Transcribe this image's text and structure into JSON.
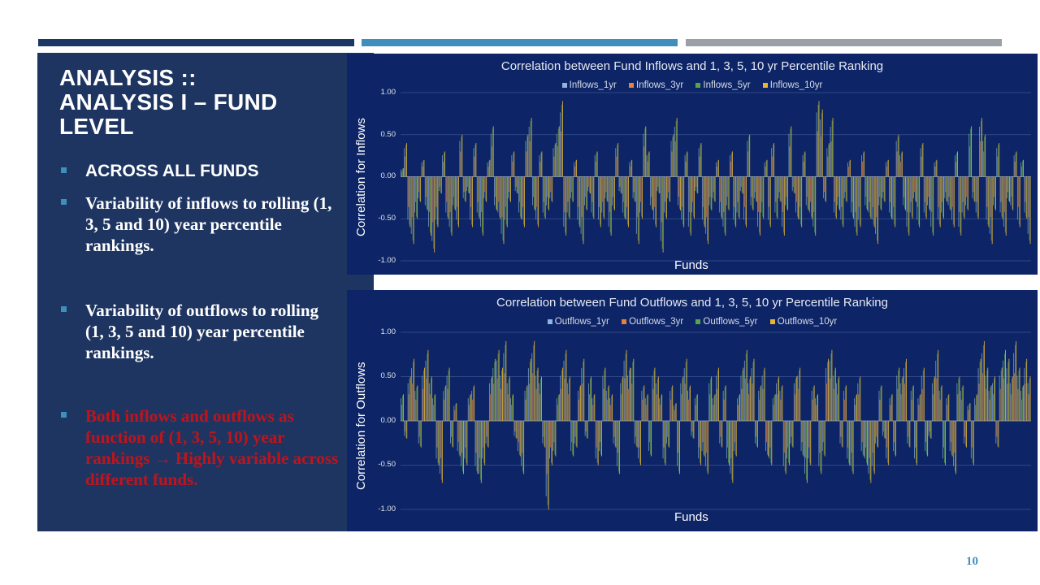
{
  "title": {
    "line1": "ANALYSIS ::",
    "line2": "ANALYSIS I – FUND",
    "line3": "LEVEL"
  },
  "bullets": [
    {
      "text": "ACROSS ALL FUNDS"
    },
    {
      "text": "Variability of inflows to rolling (1, 3, 5 and 10) year percentile rankings."
    },
    {
      "text": "Variability of outflows to rolling (1, 3, 5 and 10) year percentile rankings."
    },
    {
      "text": "Both inflows and outflows as function of (1, 3, 5, 10) year rankings → Highly variable across different funds."
    }
  ],
  "page_number": "10",
  "colors": {
    "panel": "#1e3561",
    "chart_bg": "#0d2566",
    "accent": "#3f8fbd",
    "highlight_text": "#c0141b",
    "series_1yr": "#8fb4e3",
    "series_3yr": "#e8823a",
    "series_5yr": "#5aa447",
    "series_10yr": "#e8b533"
  },
  "chart_data": [
    {
      "type": "bar",
      "title": "Correlation between Fund Inflows and 1, 3, 5, 10 yr Percentile Ranking",
      "xlabel": "Funds",
      "ylabel": "Correlation for Inflows",
      "ylim": [
        -1.0,
        1.0
      ],
      "yticks": [
        "1.00",
        "0.50",
        "0.00",
        "-0.50",
        "-1.00"
      ],
      "grid": true,
      "legend_position": "top",
      "series": [
        {
          "name": "Inflows_1yr"
        },
        {
          "name": "Inflows_3yr"
        },
        {
          "name": "Inflows_5yr"
        },
        {
          "name": "Inflows_10yr"
        }
      ],
      "values_10yr": [
        0.1,
        0.4,
        -0.6,
        -0.8,
        -0.5,
        -0.3,
        0.2,
        -0.4,
        -0.7,
        -0.9,
        -0.6,
        -0.2,
        0.3,
        -0.5,
        -0.7,
        -0.4,
        -0.6,
        0.5,
        -0.3,
        -0.2,
        -0.6,
        0.4,
        -0.5,
        -0.7,
        -0.3,
        0.2,
        0.6,
        -0.4,
        -0.5,
        -0.8,
        -0.6,
        -0.3,
        0.3,
        -0.2,
        -0.5,
        -0.6,
        0.5,
        0.7,
        -0.4,
        -0.6,
        0.3,
        -0.5,
        -0.4,
        -0.3,
        0.4,
        0.6,
        0.9,
        -0.7,
        -0.5,
        -0.3,
        0.2,
        -0.6,
        -0.8,
        -0.4,
        -0.2,
        -0.5,
        0.3,
        -0.6,
        -0.5,
        -0.3,
        -0.7,
        -0.4,
        0.4,
        -0.2,
        -0.5,
        -0.6,
        0.2,
        -0.3,
        -0.8,
        -0.5,
        0.6,
        0.3,
        -0.4,
        -0.6,
        -0.2,
        -0.9,
        -0.5,
        -0.3,
        0.5,
        0.7,
        -0.4,
        -0.6,
        0.3,
        -0.7,
        -0.5,
        -0.2,
        0.4,
        -0.6,
        -0.8,
        -0.4,
        -0.3,
        0.2,
        -0.5,
        -0.7,
        -0.4,
        0.3,
        -0.6,
        -0.5,
        -0.2,
        -0.6,
        0.5,
        -0.4,
        -0.3,
        -0.7,
        -0.5,
        0.2,
        -0.6,
        0.4,
        -0.5,
        -0.3,
        -0.7,
        -0.4,
        0.6,
        -0.2,
        -0.5,
        -0.6,
        0.3,
        -0.4,
        -0.5,
        -0.7,
        0.9,
        0.8,
        -0.3,
        0.4,
        0.7,
        -0.5,
        -0.4,
        -0.6,
        -0.3,
        0.2,
        -0.5,
        -0.7,
        -0.6,
        0.3,
        -0.4,
        -0.5,
        -0.6,
        -0.8,
        -0.4,
        -0.3,
        0.2,
        -0.5,
        -0.6,
        0.5,
        0.3,
        -0.4,
        -0.7,
        -0.5,
        -0.3,
        -0.6,
        0.4,
        -0.5,
        -0.4,
        -0.7,
        0.2,
        -0.6,
        -0.5,
        -0.3,
        -0.4,
        -0.6,
        0.3,
        -0.7,
        -0.5,
        -0.4,
        0.6,
        -0.3,
        -0.5,
        0.7,
        0.5,
        -0.6,
        -0.8,
        -0.4,
        0.4,
        -0.5,
        -0.7,
        -0.3,
        -0.4,
        0.3,
        -0.6,
        0.2,
        -0.5,
        -0.8
      ]
    },
    {
      "type": "bar",
      "title": "Correlation between Fund Outflows and 1, 3, 5, 10 yr Percentile Ranking",
      "xlabel": "Funds",
      "ylabel": "Correlation for Outflows",
      "ylim": [
        -1.0,
        1.0
      ],
      "yticks": [
        "1.00",
        "0.50",
        "0.00",
        "-0.50",
        "-1.00"
      ],
      "grid": true,
      "legend_position": "top",
      "series": [
        {
          "name": "Outflows_1yr"
        },
        {
          "name": "Outflows_3yr"
        },
        {
          "name": "Outflows_5yr"
        },
        {
          "name": "Outflows_10yr"
        }
      ],
      "values_10yr": [
        0.3,
        -0.2,
        0.5,
        0.7,
        0.4,
        -0.3,
        0.6,
        0.8,
        0.5,
        0.3,
        -0.5,
        -0.7,
        0.4,
        0.6,
        -0.3,
        0.2,
        -0.4,
        -0.6,
        -0.5,
        0.3,
        0.4,
        -0.6,
        -0.7,
        -0.5,
        -0.3,
        0.5,
        0.7,
        0.8,
        0.6,
        0.9,
        0.5,
        0.3,
        -0.2,
        -0.4,
        -0.6,
        0.4,
        0.7,
        0.9,
        0.6,
        0.5,
        -0.3,
        -1.0,
        -0.5,
        -0.4,
        0.3,
        0.6,
        0.8,
        0.5,
        -0.4,
        -0.3,
        0.4,
        0.7,
        -0.2,
        0.5,
        0.3,
        -0.5,
        -0.4,
        0.6,
        0.4,
        0.3,
        -0.3,
        -0.6,
        0.5,
        0.8,
        0.6,
        0.7,
        -0.3,
        -0.5,
        0.4,
        0.3,
        -0.4,
        0.6,
        0.5,
        0.3,
        -0.5,
        -0.3,
        0.4,
        0.2,
        -0.6,
        0.5,
        0.7,
        0.4,
        -0.2,
        0.3,
        -0.5,
        -0.4,
        -0.6,
        0.5,
        0.3,
        0.6,
        -0.3,
        0.4,
        -0.5,
        -0.7,
        -0.4,
        0.3,
        0.6,
        0.8,
        0.5,
        0.7,
        -0.3,
        0.4,
        0.6,
        -0.4,
        -0.5,
        0.3,
        0.5,
        0.4,
        -0.6,
        -0.5,
        -0.3,
        0.5,
        0.6,
        -0.4,
        -0.7,
        -0.5,
        0.4,
        0.3,
        -0.6,
        -0.4,
        0.7,
        0.8,
        0.6,
        0.5,
        -0.3,
        0.4,
        -0.5,
        -0.6,
        0.3,
        0.5,
        -0.4,
        -0.5,
        -0.7,
        -0.6,
        -0.3,
        0.4,
        -0.2,
        -0.5,
        0.3,
        -0.4,
        0.6,
        0.5,
        0.7,
        -0.3,
        0.4,
        -0.5,
        0.3,
        0.6,
        -0.4,
        -0.2,
        0.5,
        0.8,
        0.4,
        -0.5,
        0.3,
        -0.4,
        -0.6,
        0.5,
        0.4,
        -0.3,
        0.2,
        -0.5,
        0.3,
        0.7,
        0.9,
        0.6,
        0.4,
        0.5,
        -0.3,
        0.6,
        0.8,
        0.7,
        0.5,
        0.9,
        0.6,
        0.4,
        0.7,
        0.5
      ]
    }
  ]
}
